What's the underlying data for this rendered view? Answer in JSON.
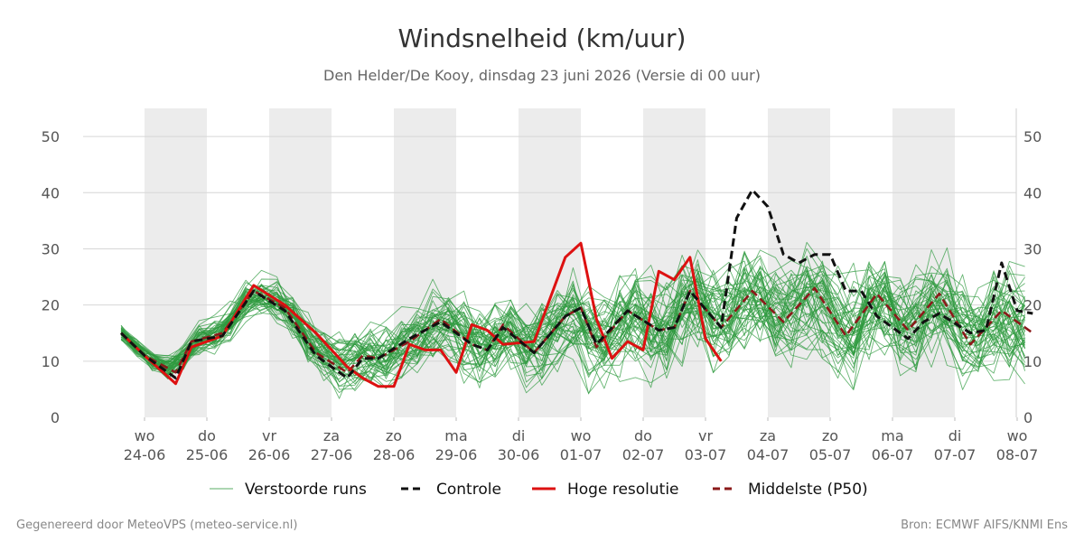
{
  "chart_data": {
    "type": "line",
    "title": "Windsnelheid (km/uur)",
    "subtitle": "Den Helder/De Kooy, dinsdag 23 juni 2026 (Versie di 00 uur)",
    "xlabel": "",
    "ylabel": "",
    "ylim": [
      0,
      55
    ],
    "yticks": [
      0,
      10,
      20,
      30,
      40,
      50
    ],
    "grid": true,
    "legend_position": "bottom",
    "x_range": [
      "2026-06-23 12:00",
      "2026-07-08 00:00"
    ],
    "xticks": [
      {
        "date": "2026-06-24",
        "day": "wo",
        "label": "24-06"
      },
      {
        "date": "2026-06-25",
        "day": "do",
        "label": "25-06"
      },
      {
        "date": "2026-06-26",
        "day": "vr",
        "label": "26-06"
      },
      {
        "date": "2026-06-27",
        "day": "za",
        "label": "27-06"
      },
      {
        "date": "2026-06-28",
        "day": "zo",
        "label": "28-06"
      },
      {
        "date": "2026-06-29",
        "day": "ma",
        "label": "29-06"
      },
      {
        "date": "2026-06-30",
        "day": "di",
        "label": "30-06"
      },
      {
        "date": "2026-07-01",
        "day": "wo",
        "label": "01-07"
      },
      {
        "date": "2026-07-02",
        "day": "do",
        "label": "02-07"
      },
      {
        "date": "2026-07-03",
        "day": "vr",
        "label": "03-07"
      },
      {
        "date": "2026-07-04",
        "day": "za",
        "label": "04-07"
      },
      {
        "date": "2026-07-05",
        "day": "zo",
        "label": "05-07"
      },
      {
        "date": "2026-07-06",
        "day": "ma",
        "label": "06-07"
      },
      {
        "date": "2026-07-07",
        "day": "di",
        "label": "07-07"
      },
      {
        "date": "2026-07-08",
        "day": "wo",
        "label": "08-07"
      }
    ],
    "shaded_days": [
      "2026-06-24",
      "2026-06-26",
      "2026-06-28",
      "2026-06-30",
      "2026-07-02",
      "2026-07-04",
      "2026-07-06"
    ],
    "series": [
      {
        "name": "Controle",
        "color": "#111111",
        "style": "dashed",
        "points": [
          [
            "2026-06-23 15:00",
            15
          ],
          [
            "2026-06-24 00:00",
            11
          ],
          [
            "2026-06-24 12:00",
            7
          ],
          [
            "2026-06-24 18:00",
            13.5
          ],
          [
            "2026-06-25 06:00",
            14.5
          ],
          [
            "2026-06-25 18:00",
            22.5
          ],
          [
            "2026-06-26 06:00",
            19
          ],
          [
            "2026-06-26 18:00",
            11
          ],
          [
            "2026-06-27 06:00",
            7
          ],
          [
            "2026-06-27 12:00",
            10.5
          ],
          [
            "2026-06-27 18:00",
            10.5
          ],
          [
            "2026-06-28 06:00",
            14
          ],
          [
            "2026-06-28 18:00",
            17
          ],
          [
            "2026-06-29 06:00",
            13
          ],
          [
            "2026-06-29 12:00",
            12
          ],
          [
            "2026-06-29 18:00",
            16
          ],
          [
            "2026-06-30 06:00",
            11.5
          ],
          [
            "2026-06-30 18:00",
            18
          ],
          [
            "2026-07-01 00:00",
            19.5
          ],
          [
            "2026-07-01 06:00",
            13
          ],
          [
            "2026-07-01 18:00",
            19
          ],
          [
            "2026-07-02 06:00",
            15.5
          ],
          [
            "2026-07-02 12:00",
            16
          ],
          [
            "2026-07-02 18:00",
            22.5
          ],
          [
            "2026-07-03 06:00",
            16
          ],
          [
            "2026-07-03 12:00",
            35.5
          ],
          [
            "2026-07-03 18:00",
            40.5
          ],
          [
            "2026-07-04 00:00",
            37.5
          ],
          [
            "2026-07-04 06:00",
            29
          ],
          [
            "2026-07-04 12:00",
            27.5
          ],
          [
            "2026-07-04 18:00",
            29
          ],
          [
            "2026-07-05 00:00",
            29
          ],
          [
            "2026-07-05 06:00",
            22.5
          ],
          [
            "2026-07-05 12:00",
            22.5
          ],
          [
            "2026-07-05 18:00",
            18
          ],
          [
            "2026-07-06 06:00",
            14
          ],
          [
            "2026-07-06 12:00",
            17
          ],
          [
            "2026-07-06 18:00",
            18.5
          ],
          [
            "2026-07-07 06:00",
            15
          ],
          [
            "2026-07-07 12:00",
            15.5
          ],
          [
            "2026-07-07 18:00",
            27.5
          ],
          [
            "2026-07-08 00:00",
            19
          ],
          [
            "2026-07-08 06:00",
            18.5
          ]
        ]
      },
      {
        "name": "Hoge resolutie",
        "color": "#dd1111",
        "style": "solid",
        "points": [
          [
            "2026-06-23 15:00",
            15
          ],
          [
            "2026-06-24 00:00",
            11
          ],
          [
            "2026-06-24 12:00",
            6
          ],
          [
            "2026-06-24 18:00",
            12.5
          ],
          [
            "2026-06-25 06:00",
            14.5
          ],
          [
            "2026-06-25 18:00",
            23.5
          ],
          [
            "2026-06-26 06:00",
            20
          ],
          [
            "2026-06-26 18:00",
            15
          ],
          [
            "2026-06-27 06:00",
            9
          ],
          [
            "2026-06-27 12:00",
            7
          ],
          [
            "2026-06-27 18:00",
            5.5
          ],
          [
            "2026-06-28 00:00",
            5.5
          ],
          [
            "2026-06-28 06:00",
            13
          ],
          [
            "2026-06-28 12:00",
            12
          ],
          [
            "2026-06-28 18:00",
            12
          ],
          [
            "2026-06-29 00:00",
            8
          ],
          [
            "2026-06-29 06:00",
            16.5
          ],
          [
            "2026-06-29 12:00",
            15.5
          ],
          [
            "2026-06-29 18:00",
            13
          ],
          [
            "2026-06-30 06:00",
            13.5
          ],
          [
            "2026-06-30 18:00",
            28.5
          ],
          [
            "2026-07-01 00:00",
            31
          ],
          [
            "2026-07-01 06:00",
            17.5
          ],
          [
            "2026-07-01 12:00",
            10.5
          ],
          [
            "2026-07-01 18:00",
            13.5
          ],
          [
            "2026-07-02 00:00",
            12
          ],
          [
            "2026-07-02 06:00",
            26
          ],
          [
            "2026-07-02 12:00",
            24.5
          ],
          [
            "2026-07-02 18:00",
            28.5
          ],
          [
            "2026-07-03 00:00",
            14
          ],
          [
            "2026-07-03 06:00",
            10
          ]
        ]
      },
      {
        "name": "Middelste (P50)",
        "color": "#8b1a1a",
        "style": "dashed",
        "points": [
          [
            "2026-06-23 15:00",
            15
          ],
          [
            "2026-06-24 00:00",
            11
          ],
          [
            "2026-06-24 12:00",
            8
          ],
          [
            "2026-06-24 18:00",
            13.5
          ],
          [
            "2026-06-25 06:00",
            15
          ],
          [
            "2026-06-25 18:00",
            22.5
          ],
          [
            "2026-06-26 06:00",
            19.5
          ],
          [
            "2026-06-26 18:00",
            11.5
          ],
          [
            "2026-06-27 06:00",
            8
          ],
          [
            "2026-06-27 12:00",
            11
          ],
          [
            "2026-06-27 18:00",
            10.5
          ],
          [
            "2026-06-28 06:00",
            13.5
          ],
          [
            "2026-06-28 18:00",
            17.5
          ],
          [
            "2026-06-29 06:00",
            13
          ],
          [
            "2026-06-29 12:00",
            12
          ],
          [
            "2026-06-29 18:00",
            16.5
          ],
          [
            "2026-06-30 06:00",
            11.5
          ],
          [
            "2026-06-30 18:00",
            18
          ],
          [
            "2026-07-01 00:00",
            19.5
          ],
          [
            "2026-07-01 06:00",
            12.5
          ],
          [
            "2026-07-01 18:00",
            19
          ],
          [
            "2026-07-02 06:00",
            15.5
          ],
          [
            "2026-07-02 12:00",
            16
          ],
          [
            "2026-07-02 18:00",
            22.5
          ],
          [
            "2026-07-03 06:00",
            16
          ],
          [
            "2026-07-03 18:00",
            22.5
          ],
          [
            "2026-07-04 06:00",
            17
          ],
          [
            "2026-07-04 18:00",
            23
          ],
          [
            "2026-07-05 06:00",
            14.5
          ],
          [
            "2026-07-05 18:00",
            22
          ],
          [
            "2026-07-06 06:00",
            15.5
          ],
          [
            "2026-07-06 18:00",
            22
          ],
          [
            "2026-07-07 06:00",
            13
          ],
          [
            "2026-07-07 18:00",
            19
          ],
          [
            "2026-07-08 06:00",
            15
          ]
        ]
      },
      {
        "name": "Verstoorde runs",
        "color": "#2e9a3e",
        "style": "thin",
        "members": 50,
        "time_step_hours": 6,
        "approximate": true
      }
    ]
  },
  "legend": [
    {
      "label": "Verstoorde runs",
      "color": "#2e9a3e",
      "style": "thin"
    },
    {
      "label": "Controle",
      "color": "#111111",
      "style": "dashed"
    },
    {
      "label": "Hoge resolutie",
      "color": "#dd1111",
      "style": "solid"
    },
    {
      "label": "Middelste (P50)",
      "color": "#8b1a1a",
      "style": "dashed"
    }
  ],
  "footer": {
    "left": "Gegenereerd door MeteoVPS (meteo-service.nl)",
    "right": "Bron: ECMWF AIFS/KNMI Ens"
  }
}
